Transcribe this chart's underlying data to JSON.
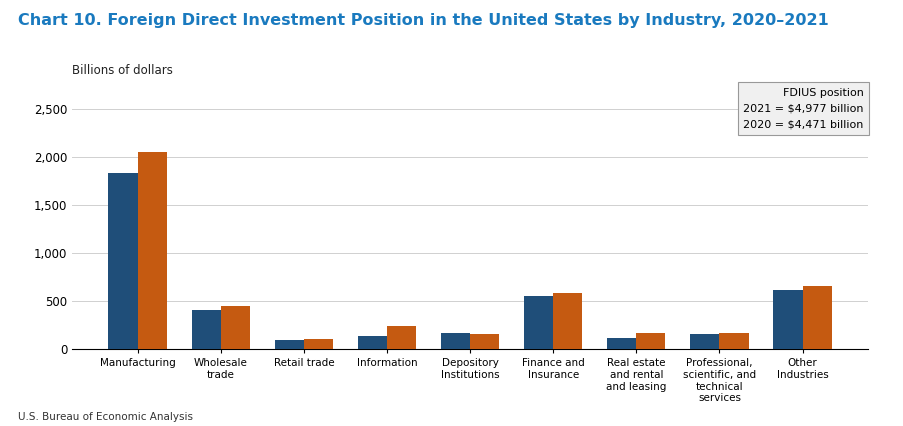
{
  "title": "Chart 10. Foreign Direct Investment Position in the United States by Industry, 2020–2021",
  "ylabel_text": "Billions of dollars",
  "source": "U.S. Bureau of Economic Analysis",
  "categories": [
    "Manufacturing",
    "Wholesale\ntrade",
    "Retail trade",
    "Information",
    "Depository\nInstitutions",
    "Finance and\nInsurance",
    "Real estate\nand rental\nand leasing",
    "Professional,\nscientific, and\ntechnical\nservices",
    "Other\nIndustries"
  ],
  "values_2020": [
    1835,
    410,
    95,
    135,
    165,
    555,
    115,
    155,
    615
  ],
  "values_2021": [
    2055,
    450,
    105,
    240,
    155,
    590,
    165,
    170,
    655
  ],
  "color_2020": "#1f4e79",
  "color_2021": "#c55a11",
  "ylim": [
    0,
    2750
  ],
  "yticks": [
    0,
    500,
    1000,
    1500,
    2000,
    2500
  ],
  "legend_box_title": "FDIUS position",
  "legend_box_line1": "2021 = $4,977 billion",
  "legend_box_line2": "2020 = $4,471 billion",
  "bar_width": 0.35,
  "title_color": "#1f77b4",
  "title_fontsize": 12
}
